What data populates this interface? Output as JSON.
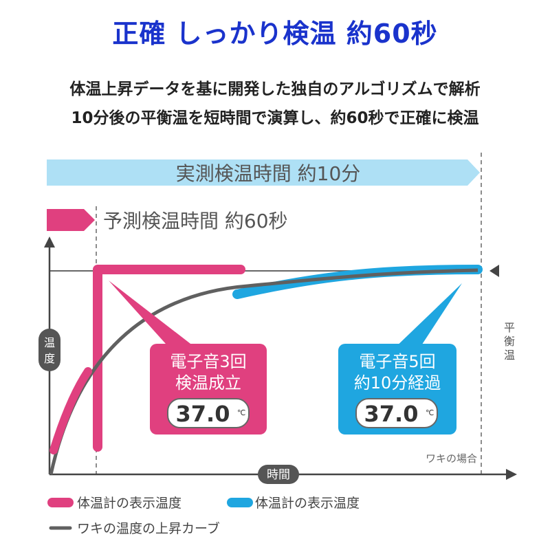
{
  "headline": "正確 しっかり検温 約60秒",
  "description": [
    "体温上昇データを基に開発した独自のアルゴリズムで解析",
    "10分後の平衡温を短時間で演算し、約60秒で正確に検温"
  ],
  "diagram": {
    "measured_label": "実測検温時間 約10分",
    "predicted_label": "予測検温時間 約60秒",
    "y_axis_label": [
      "温",
      "度"
    ],
    "x_axis_label": "時間",
    "equilibrium_label": [
      "平",
      "衡",
      "温"
    ],
    "case_note": "ワキの場合",
    "predicted_callout": {
      "lines": [
        "電子音3回",
        "検温成立"
      ],
      "display_value": "37.0",
      "unit": "℃",
      "color": "#e0407f"
    },
    "measured_callout": {
      "lines": [
        "電子音5回",
        "約10分経過"
      ],
      "display_value": "37.0",
      "unit": "℃",
      "color": "#1fa6e0"
    }
  },
  "legend": [
    {
      "label": "体温計の表示温度",
      "color": "#e0407f"
    },
    {
      "label": "体温計の表示温度",
      "color": "#1fa6e0"
    },
    {
      "label": "ワキの温度の上昇カーブ",
      "color": "#555555"
    }
  ]
}
